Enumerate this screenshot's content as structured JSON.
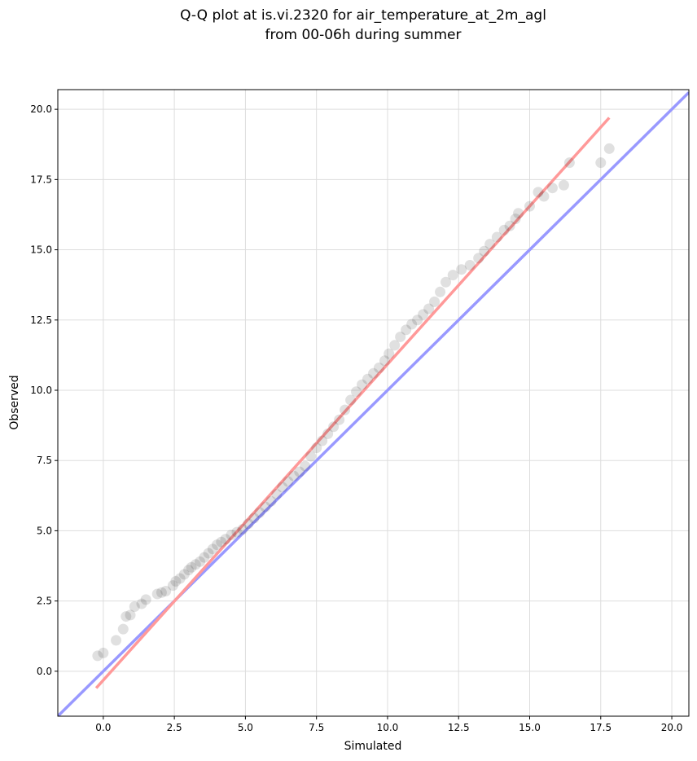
{
  "chart_data": {
    "type": "scatter",
    "title_lines": [
      "Q-Q plot at is.vi.2320 for air_temperature_at_2m_agl",
      "from 00-06h during summer"
    ],
    "xlabel": "Simulated",
    "ylabel": "Observed",
    "xlim": [
      -1.6,
      20.6
    ],
    "ylim": [
      -1.6,
      20.7
    ],
    "xticks": [
      0.0,
      2.5,
      5.0,
      7.5,
      10.0,
      12.5,
      15.0,
      17.5,
      20.0
    ],
    "yticks": [
      0.0,
      2.5,
      5.0,
      7.5,
      10.0,
      12.5,
      15.0,
      17.5,
      20.0
    ],
    "xtick_labels": [
      "0.0",
      "2.5",
      "5.0",
      "7.5",
      "10.0",
      "12.5",
      "15.0",
      "17.5",
      "20.0"
    ],
    "ytick_labels": [
      "0.0",
      "2.5",
      "5.0",
      "7.5",
      "10.0",
      "12.5",
      "15.0",
      "17.5",
      "20.0"
    ],
    "grid": true,
    "colors": {
      "points": "#000000",
      "identity_line": "#9999ff",
      "fit_line": "#ff9999"
    },
    "identity_line": {
      "x": [
        -1.6,
        20.6
      ],
      "y": [
        -1.6,
        20.6
      ]
    },
    "fit_line": {
      "x": [
        -0.25,
        17.8
      ],
      "y": [
        -0.6,
        19.7
      ]
    },
    "points": [
      [
        -0.2,
        0.55
      ],
      [
        0.0,
        0.65
      ],
      [
        0.45,
        1.1
      ],
      [
        0.7,
        1.5
      ],
      [
        0.8,
        1.95
      ],
      [
        0.95,
        2.0
      ],
      [
        1.1,
        2.3
      ],
      [
        1.35,
        2.4
      ],
      [
        1.5,
        2.55
      ],
      [
        1.9,
        2.75
      ],
      [
        2.05,
        2.8
      ],
      [
        2.2,
        2.85
      ],
      [
        2.45,
        3.05
      ],
      [
        2.55,
        3.2
      ],
      [
        2.7,
        3.3
      ],
      [
        2.85,
        3.45
      ],
      [
        3.0,
        3.6
      ],
      [
        3.1,
        3.7
      ],
      [
        3.25,
        3.8
      ],
      [
        3.4,
        3.9
      ],
      [
        3.55,
        4.05
      ],
      [
        3.7,
        4.2
      ],
      [
        3.85,
        4.35
      ],
      [
        4.0,
        4.5
      ],
      [
        4.15,
        4.6
      ],
      [
        4.3,
        4.7
      ],
      [
        4.5,
        4.85
      ],
      [
        4.7,
        4.95
      ],
      [
        4.9,
        5.05
      ],
      [
        5.1,
        5.25
      ],
      [
        5.3,
        5.45
      ],
      [
        5.5,
        5.65
      ],
      [
        5.7,
        5.85
      ],
      [
        5.9,
        6.05
      ],
      [
        6.1,
        6.3
      ],
      [
        6.3,
        6.55
      ],
      [
        6.5,
        6.75
      ],
      [
        6.7,
        6.95
      ],
      [
        6.9,
        7.1
      ],
      [
        7.1,
        7.3
      ],
      [
        7.3,
        7.65
      ],
      [
        7.5,
        7.95
      ],
      [
        7.7,
        8.2
      ],
      [
        7.9,
        8.45
      ],
      [
        8.1,
        8.7
      ],
      [
        8.3,
        8.95
      ],
      [
        8.5,
        9.3
      ],
      [
        8.7,
        9.65
      ],
      [
        8.9,
        9.95
      ],
      [
        9.1,
        10.2
      ],
      [
        9.3,
        10.4
      ],
      [
        9.5,
        10.6
      ],
      [
        9.7,
        10.8
      ],
      [
        9.9,
        11.05
      ],
      [
        10.05,
        11.3
      ],
      [
        10.25,
        11.6
      ],
      [
        10.45,
        11.9
      ],
      [
        10.65,
        12.15
      ],
      [
        10.85,
        12.35
      ],
      [
        11.05,
        12.5
      ],
      [
        11.25,
        12.7
      ],
      [
        11.45,
        12.9
      ],
      [
        11.65,
        13.15
      ],
      [
        11.85,
        13.5
      ],
      [
        12.05,
        13.85
      ],
      [
        12.3,
        14.1
      ],
      [
        12.6,
        14.3
      ],
      [
        12.9,
        14.45
      ],
      [
        13.2,
        14.7
      ],
      [
        13.4,
        14.95
      ],
      [
        13.6,
        15.2
      ],
      [
        13.85,
        15.45
      ],
      [
        14.1,
        15.7
      ],
      [
        14.3,
        15.85
      ],
      [
        14.5,
        16.1
      ],
      [
        14.6,
        16.3
      ],
      [
        15.0,
        16.55
      ],
      [
        15.3,
        17.05
      ],
      [
        15.5,
        16.9
      ],
      [
        15.8,
        17.2
      ],
      [
        16.2,
        17.3
      ],
      [
        16.4,
        18.1
      ],
      [
        17.5,
        18.1
      ],
      [
        17.8,
        18.6
      ]
    ]
  }
}
